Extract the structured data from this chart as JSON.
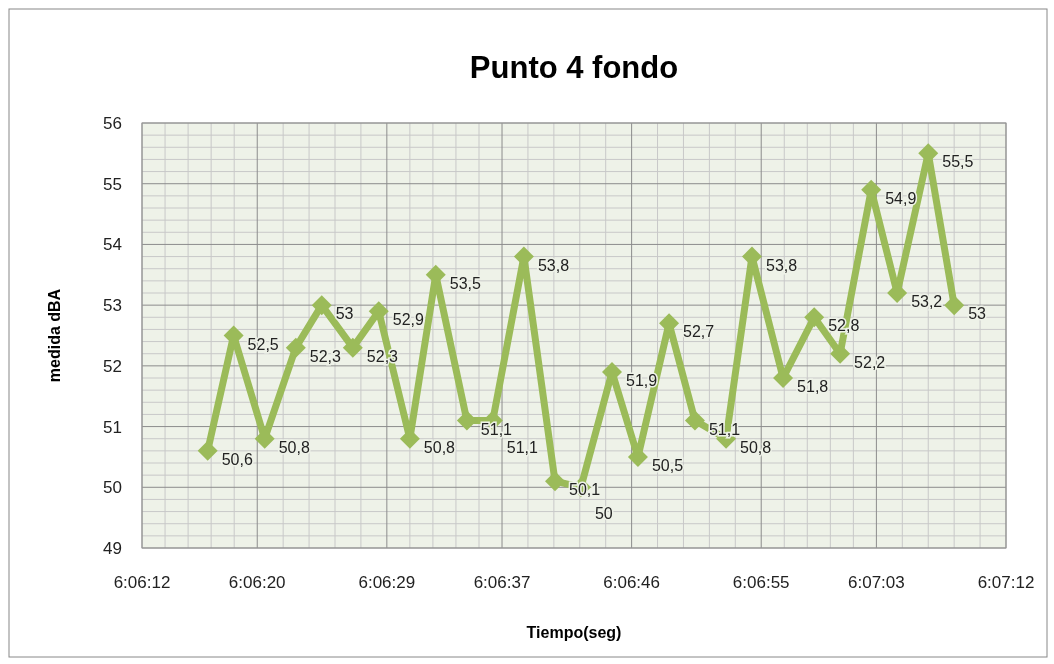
{
  "chart_data": {
    "type": "line",
    "title": "Punto 4 fondo",
    "xlabel": "Tiempo(seg)",
    "ylabel": "medida dBA",
    "x": [
      6.1046,
      6.1051,
      6.1057,
      6.1063,
      6.1068,
      6.1074,
      6.1079,
      6.1085,
      6.109,
      6.1096,
      6.1101,
      6.1107,
      6.1113,
      6.1118,
      6.1124,
      6.1129,
      6.1135,
      6.114,
      6.1146,
      6.1151,
      6.1157,
      6.1163,
      6.1168,
      6.1174,
      6.1179,
      6.1185,
      6.119
    ],
    "series": [
      {
        "color": "#9bbb59",
        "values": [
          50.6,
          52.5,
          50.8,
          52.3,
          53,
          52.3,
          52.9,
          50.8,
          53.5,
          51.1,
          51.1,
          53.8,
          50.1,
          50,
          51.9,
          50.5,
          52.7,
          51.1,
          50.8,
          53.8,
          51.8,
          52.8,
          52.2,
          54.9,
          53.2,
          55.5,
          53
        ],
        "value_labels": [
          "50,6",
          "52,5",
          "50,8",
          "52,3",
          "53",
          "52,3",
          "52,9",
          "50,8",
          "53,5",
          "51,1",
          "51,1",
          "53,8",
          "50,1",
          "50",
          "51,9",
          "50,5",
          "52,7",
          "51,1",
          "50,8",
          "53,8",
          "51,8",
          "52,8",
          "52,2",
          "54,9",
          "53,2",
          "55,5",
          "53"
        ]
      }
    ],
    "xlim": [
      6.103333,
      6.12
    ],
    "xticks": [
      {
        "value": 6.103333,
        "label": "6:06:12"
      },
      {
        "value": 6.105556,
        "label": "6:06:20"
      },
      {
        "value": 6.108056,
        "label": "6:06:29"
      },
      {
        "value": 6.110278,
        "label": "6:06:37"
      },
      {
        "value": 6.112778,
        "label": "6:06:46"
      },
      {
        "value": 6.115278,
        "label": "6:06:55"
      },
      {
        "value": 6.1175,
        "label": "6:07:03"
      },
      {
        "value": 6.12,
        "label": "6:07:12"
      }
    ],
    "ylim": [
      49,
      56
    ],
    "yticks": [
      49,
      50,
      51,
      52,
      53,
      54,
      55,
      56
    ],
    "grid": true,
    "marker": "diamond",
    "line_style": "solid"
  }
}
